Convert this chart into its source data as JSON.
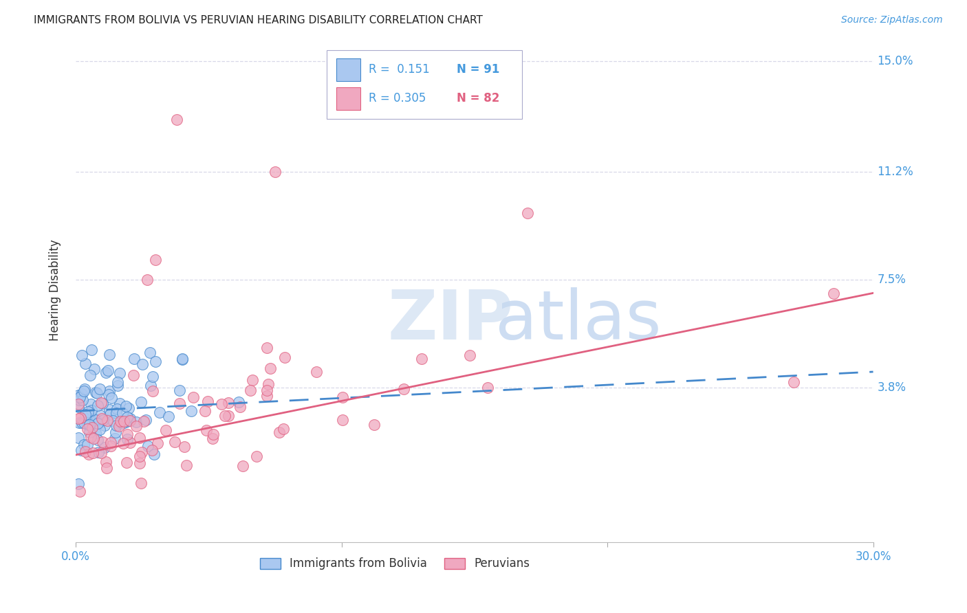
{
  "title": "IMMIGRANTS FROM BOLIVIA VS PERUVIAN HEARING DISABILITY CORRELATION CHART",
  "source": "Source: ZipAtlas.com",
  "ylabel": "Hearing Disability",
  "xlim": [
    0.0,
    0.3
  ],
  "ylim": [
    -0.015,
    0.158
  ],
  "color_bolivia": "#aac8f0",
  "color_peru": "#f0a8c0",
  "color_bolivia_line": "#4488cc",
  "color_peru_line": "#e06080",
  "color_blue_text": "#4499dd",
  "background_color": "#ffffff",
  "grid_color": "#d8d8e8",
  "title_fontsize": 11,
  "source_fontsize": 10,
  "ytick_vals": [
    0.038,
    0.075,
    0.112,
    0.15
  ],
  "ytick_labels": [
    "3.8%",
    "7.5%",
    "11.2%",
    "15.0%"
  ],
  "legend_items": [
    {
      "color": "#aac8f0",
      "edge": "#4488cc",
      "r": "R =  0.151",
      "n": "N = 91"
    },
    {
      "color": "#f0a8c0",
      "edge": "#e06080",
      "r": "R = 0.305",
      "n": "N = 82"
    }
  ]
}
